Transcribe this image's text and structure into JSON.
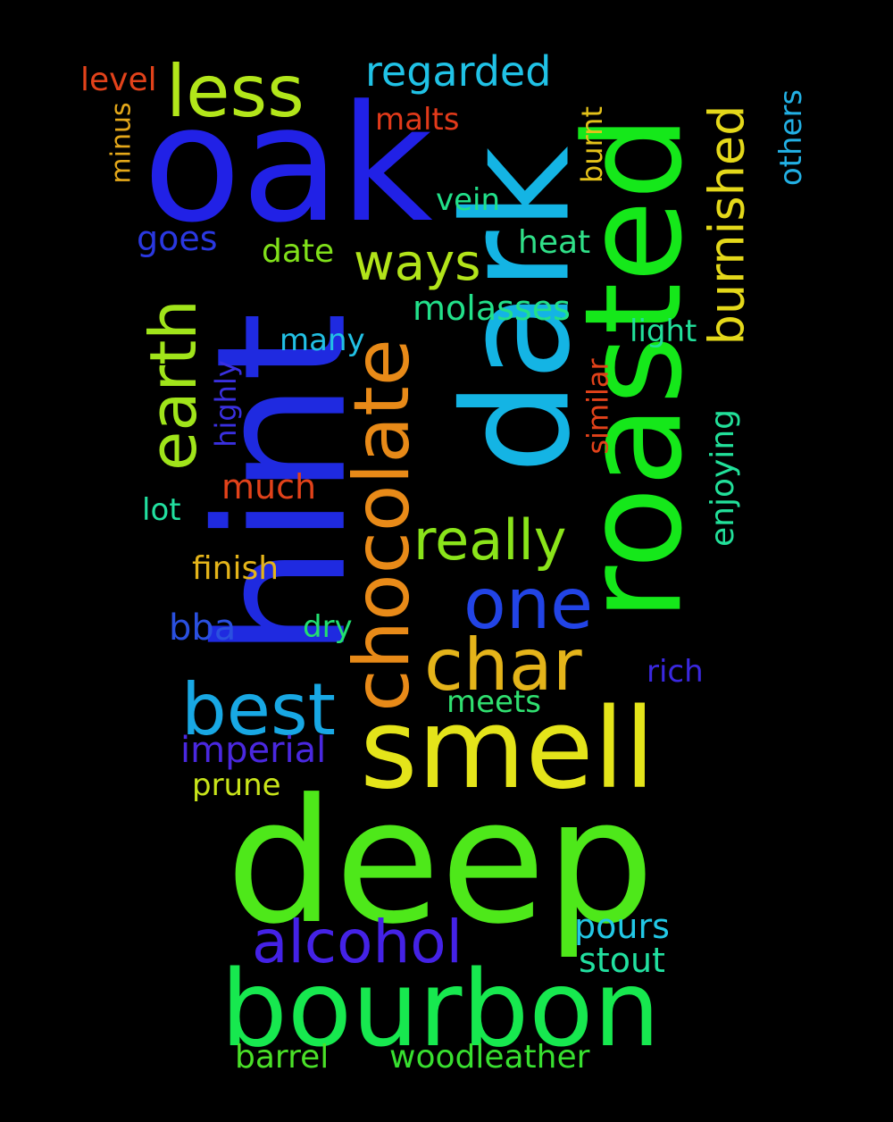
{
  "words": [
    {
      "text": "deep",
      "color": "#4ee81a"
    },
    {
      "text": "bourbon",
      "color": "#17e84f"
    },
    {
      "text": "oak",
      "color": "#2121e6"
    },
    {
      "text": "hint",
      "color": "#1f2ae0"
    },
    {
      "text": "dark",
      "color": "#14b4e4"
    },
    {
      "text": "roasted",
      "color": "#15e81a"
    },
    {
      "text": "smell",
      "color": "#e4e41a"
    },
    {
      "text": "chocolate",
      "color": "#e88a18"
    },
    {
      "text": "less",
      "color": "#b2e61a"
    },
    {
      "text": "earth",
      "color": "#a0e41a"
    },
    {
      "text": "char",
      "color": "#e4b41a"
    },
    {
      "text": "one",
      "color": "#2244e6"
    },
    {
      "text": "best",
      "color": "#18a8e4"
    },
    {
      "text": "really",
      "color": "#8ae41a"
    },
    {
      "text": "alcohol",
      "color": "#4422e6"
    },
    {
      "text": "ways",
      "color": "#b2e41a"
    },
    {
      "text": "burnished",
      "color": "#e4d81a"
    },
    {
      "text": "regarded",
      "color": "#20c2e6"
    },
    {
      "text": "molasses",
      "color": "#22e08a"
    },
    {
      "text": "imperial",
      "color": "#4a28e0"
    },
    {
      "text": "woodleather",
      "color": "#38e030"
    },
    {
      "text": "barrel",
      "color": "#4ae028"
    },
    {
      "text": "stout",
      "color": "#22e0a0"
    },
    {
      "text": "pours",
      "color": "#22c8e6"
    },
    {
      "text": "enjoying",
      "color": "#22e09a"
    },
    {
      "text": "others",
      "color": "#22b0e4"
    },
    {
      "text": "burnt",
      "color": "#e4c21a"
    },
    {
      "text": "level",
      "color": "#e2421a"
    },
    {
      "text": "malts",
      "color": "#e23a1a"
    },
    {
      "text": "vein",
      "color": "#22e08a"
    },
    {
      "text": "goes",
      "color": "#2a38e0"
    },
    {
      "text": "date",
      "color": "#80e01a"
    },
    {
      "text": "heat",
      "color": "#30e088"
    },
    {
      "text": "many",
      "color": "#22c0e4"
    },
    {
      "text": "light",
      "color": "#22e09a"
    },
    {
      "text": "highly",
      "color": "#3a30e0"
    },
    {
      "text": "much",
      "color": "#e2421a"
    },
    {
      "text": "lot",
      "color": "#22e0a0"
    },
    {
      "text": "finish",
      "color": "#e4b41a"
    },
    {
      "text": "bba",
      "color": "#2a50e0"
    },
    {
      "text": "dry",
      "color": "#22e070"
    },
    {
      "text": "rich",
      "color": "#3a28e0"
    },
    {
      "text": "meets",
      "color": "#30e070"
    },
    {
      "text": "prune",
      "color": "#c8e41a"
    },
    {
      "text": "minus",
      "color": "#e4a81a"
    },
    {
      "text": "similar",
      "color": "#e2421a"
    }
  ]
}
